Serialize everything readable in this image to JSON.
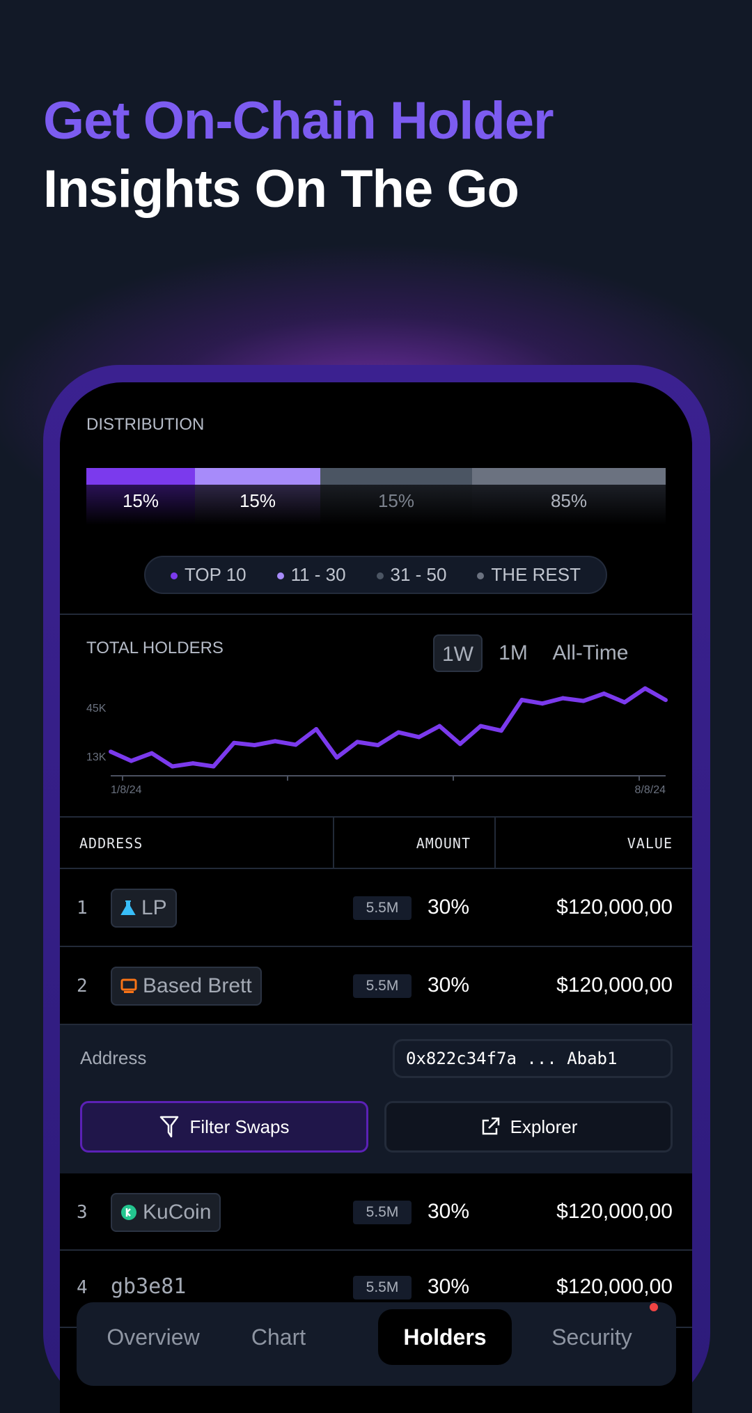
{
  "headline": {
    "line1": "Get On-Chain Holder",
    "line2": "Insights On The Go"
  },
  "colors": {
    "accent": "#7c5cf0",
    "top10": "#7b3aed",
    "r11_30": "#a78bfa",
    "r31_50": "#4b5563",
    "rest": "#6b7280",
    "lp_icon": "#38bdf8",
    "brett_icon": "#f97316",
    "kucoin_icon": "#23c58f",
    "alert": "#ef4444"
  },
  "distribution": {
    "title": "DISTRIBUTION",
    "segments": [
      {
        "label": "15%",
        "legend": "TOP 10"
      },
      {
        "label": "15%",
        "legend": "11 - 30"
      },
      {
        "label": "15%",
        "legend": "31 - 50"
      },
      {
        "label": "85%",
        "legend": "THE REST"
      }
    ]
  },
  "holders_chart": {
    "title": "TOTAL HOLDERS",
    "ranges": [
      "1W",
      "1M",
      "All-Time"
    ],
    "selected_range": "1W",
    "chart_data": {
      "type": "line",
      "title": "TOTAL HOLDERS",
      "y_ticks": [
        "45K",
        "13K"
      ],
      "x_ticks": [
        "1/8/24",
        "8/8/24"
      ],
      "values_k": [
        16.0,
        10.0,
        15.0,
        6.4,
        8.4,
        6.4,
        21.8,
        20.3,
        22.9,
        20.6,
        30.8,
        12.2,
        22.4,
        20.3,
        28.7,
        25.6,
        32.8,
        21.1,
        32.8,
        29.8,
        50.0,
        47.6,
        51.1,
        49.3,
        54.1,
        48.4,
        57.5,
        49.9
      ],
      "grid": false
    }
  },
  "table": {
    "headers": {
      "address": "ADDRESS",
      "amount": "AMOUNT",
      "value": "VALUE"
    },
    "rows": [
      {
        "rank": "1",
        "name": "LP",
        "icon": "flask-icon",
        "amount": "5.5M",
        "pct": "30%",
        "value": "$120,000,00"
      },
      {
        "rank": "2",
        "name": "Based Brett",
        "icon": "monitor-icon",
        "amount": "5.5M",
        "pct": "30%",
        "value": "$120,000,00"
      },
      {
        "rank": "3",
        "name": "KuCoin",
        "icon": "kucoin-icon",
        "amount": "5.5M",
        "pct": "30%",
        "value": "$120,000,00"
      },
      {
        "rank": "4",
        "name": "gb3e81",
        "amount": "5.5M",
        "pct": "30%",
        "value": "$120,000,00"
      }
    ],
    "expanded": {
      "address_label": "Address",
      "address_value": "0x822c34f7a ... Abab1",
      "filter_label": "Filter Swaps",
      "explorer_label": "Explorer"
    }
  },
  "nav": {
    "tabs": [
      "Overview",
      "Chart",
      "Holders",
      "Security"
    ],
    "active": "Holders"
  }
}
